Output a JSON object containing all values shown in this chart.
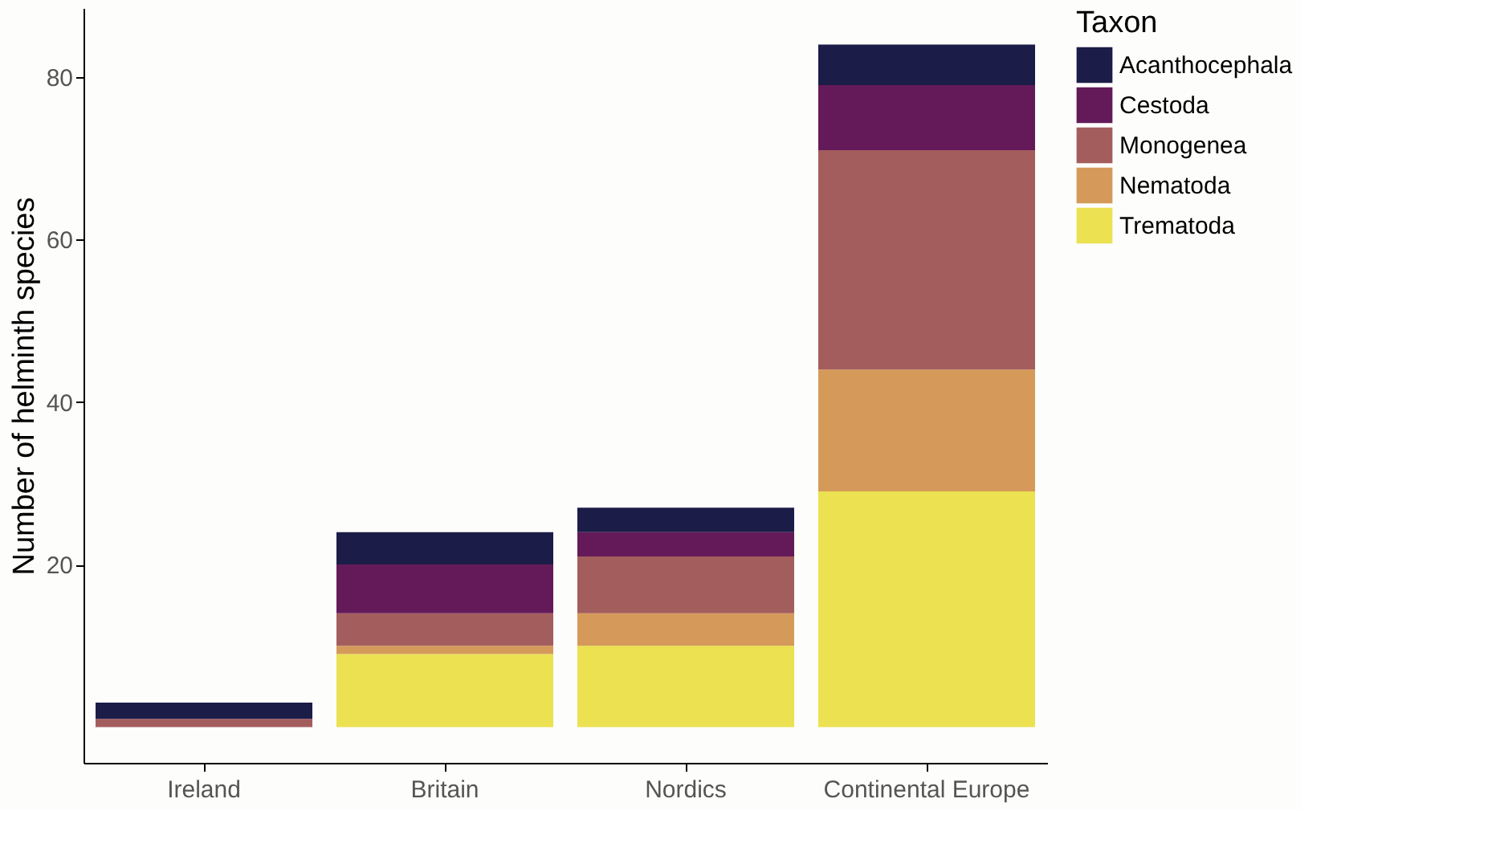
{
  "chart_data": {
    "type": "bar",
    "stacked": true,
    "ylabel": "Number of helminth species",
    "legend_title": "Taxon",
    "legend": "right",
    "grid": false,
    "categories": [
      "Ireland",
      "Britain",
      "Nordics",
      "Continental Europe"
    ],
    "series": [
      {
        "name": "Trematoda",
        "color": "#ebe151",
        "values": [
          0,
          9,
          10,
          29
        ]
      },
      {
        "name": "Nematoda",
        "color": "#d59a59",
        "values": [
          0,
          1,
          4,
          15
        ]
      },
      {
        "name": "Monogenea",
        "color": "#a45d5d",
        "values": [
          1,
          4,
          7,
          27
        ]
      },
      {
        "name": "Cestoda",
        "color": "#641a58",
        "values": [
          0,
          6,
          3,
          8
        ]
      },
      {
        "name": "Acanthocephala",
        "color": "#1c1c48",
        "values": [
          2,
          4,
          3,
          5
        ]
      }
    ],
    "ylim": [
      -4.4,
      88.5
    ],
    "yticks": [
      20,
      40,
      60,
      80
    ]
  }
}
